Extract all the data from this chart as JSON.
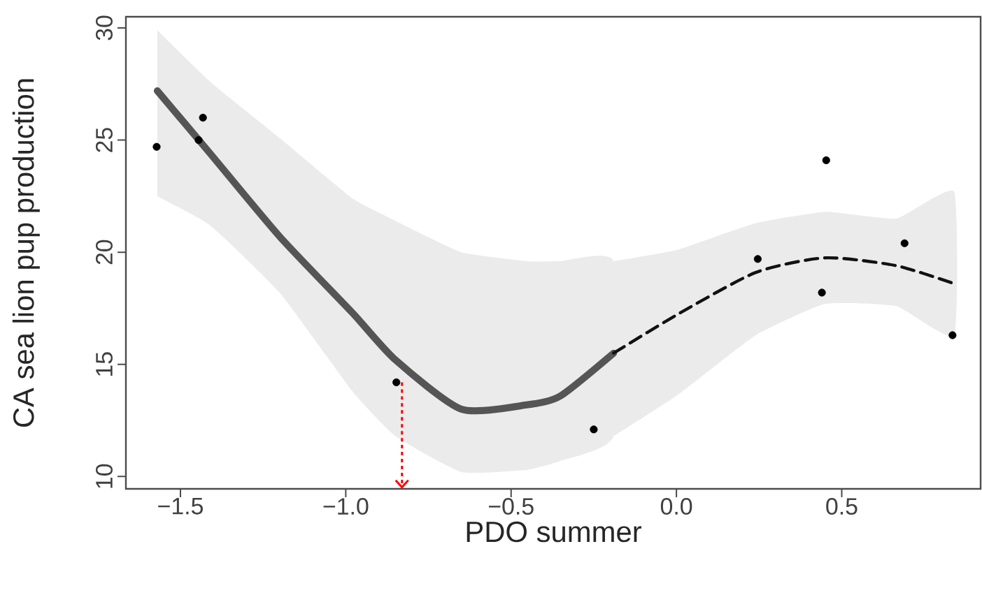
{
  "chart_data": {
    "type": "scatter",
    "xlabel": "PDO summer",
    "ylabel": "CA sea lion pup production",
    "xlim": [
      -1.665,
      0.92
    ],
    "ylim": [
      9.45,
      30.5
    ],
    "xticks": [
      {
        "value": -1.5,
        "label": "−1.5"
      },
      {
        "value": -1.0,
        "label": "−1.0"
      },
      {
        "value": -0.5,
        "label": "−0.5"
      },
      {
        "value": 0.0,
        "label": "0.0"
      },
      {
        "value": 0.5,
        "label": "0.5"
      }
    ],
    "yticks": [
      10,
      15,
      20,
      25,
      30
    ],
    "grid": false,
    "series": [
      {
        "type": "scatter",
        "color": "#000000",
        "marker": "circle",
        "x": [
          -1.572,
          -1.445,
          -1.432,
          -0.847,
          -0.25,
          0.246,
          0.453,
          0.44,
          0.69,
          0.835
        ],
        "values": [
          24.7,
          25.0,
          26.0,
          14.2,
          12.1,
          19.7,
          24.1,
          18.2,
          20.4,
          16.3
        ]
      },
      {
        "type": "line",
        "color": "#555555",
        "line_style": "solid",
        "marker": "none",
        "x": [
          -1.57,
          -1.41,
          -1.2,
          -0.98,
          -0.85,
          -0.65,
          -0.45,
          -0.35,
          -0.19
        ],
        "values": [
          27.2,
          24.4,
          20.7,
          17.3,
          15.2,
          13.0,
          13.2,
          13.6,
          15.5
        ],
        "lower": [
          22.5,
          21.2,
          18.2,
          13.8,
          11.8,
          10.2,
          10.3,
          10.7,
          11.8
        ],
        "upper": [
          29.9,
          27.6,
          25.1,
          22.4,
          21.4,
          20.0,
          19.6,
          19.6,
          19.6
        ]
      },
      {
        "type": "line",
        "color": "#111111",
        "line_style": "dashed",
        "marker": "none",
        "x": [
          -0.19,
          0.0,
          0.24,
          0.45,
          0.665,
          0.84
        ],
        "values": [
          15.5,
          17.2,
          19.1,
          19.75,
          19.4,
          18.6
        ],
        "lower": [
          11.8,
          13.6,
          16.3,
          17.7,
          17.6,
          16.3
        ],
        "upper": [
          19.6,
          20.1,
          21.3,
          21.8,
          21.5,
          22.7
        ]
      }
    ],
    "ref_lines": [
      {
        "axis": "x",
        "value": -0.83,
        "color": "#ff0000",
        "line_style": "dotted"
      }
    ]
  }
}
